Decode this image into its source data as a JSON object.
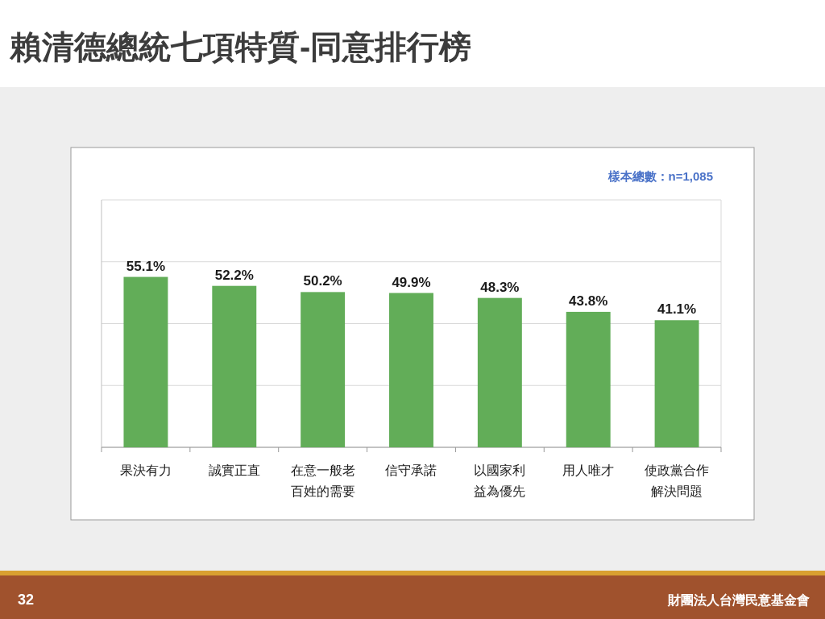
{
  "chart_data": {
    "type": "bar",
    "title": "賴清德總統七項特質-同意排行榜",
    "categories": [
      "果決有力",
      "誠實正直",
      "在意一般老百姓的需要",
      "信守承諾",
      "以國家利益為優先",
      "用人唯才",
      "使政黨合作解決問題"
    ],
    "values": [
      55.1,
      52.2,
      50.2,
      49.9,
      48.3,
      43.8,
      41.1
    ],
    "color": "#62ad58",
    "ylim": [
      0,
      80
    ],
    "yticks": [
      {
        "value": 0,
        "label": null
      },
      {
        "value": 20,
        "label": null
      },
      {
        "value": 40,
        "label": null
      },
      {
        "value": 60,
        "label": null
      },
      {
        "value": 80,
        "label": null
      }
    ],
    "tick_labels": "x",
    "grid": "y",
    "data_labels": true,
    "value_labels": [
      "55.1%",
      "52.2%",
      "50.2%",
      "49.9%",
      "48.3%",
      "43.8%",
      "41.1%"
    ],
    "annotations": [
      "樣本總數：n=1,085",
      "32",
      "財團法人台灣民意基金會"
    ]
  }
}
